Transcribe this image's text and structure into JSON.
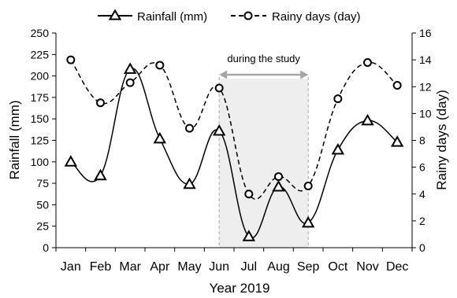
{
  "chart_data": {
    "type": "line",
    "xlabel": "Year 2019",
    "ylabel_left": "Rainfall (mm)",
    "ylabel_right": "Rainy days (day)",
    "categories": [
      "Jan",
      "Feb",
      "Mar",
      "Apr",
      "May",
      "Jun",
      "Jul",
      "Aug",
      "Sep",
      "Oct",
      "Nov",
      "Dec"
    ],
    "y_left": {
      "range": [
        0,
        250
      ],
      "ticks": [
        "0",
        "25",
        "50",
        "75",
        "100",
        "125",
        "150",
        "175",
        "200",
        "225",
        "250"
      ]
    },
    "y_right": {
      "range": [
        0,
        16
      ],
      "ticks": [
        "0",
        "2",
        "4",
        "6",
        "8",
        "10",
        "12",
        "14",
        "16"
      ]
    },
    "series": [
      {
        "name": "Rainfall (mm)",
        "axis": "left",
        "style": "solid",
        "marker": "triangle",
        "values": [
          100,
          84,
          208,
          127,
          74,
          136,
          13,
          71,
          29,
          114,
          148,
          123
        ]
      },
      {
        "name": "Rainy days (day)",
        "axis": "right",
        "style": "dashed",
        "marker": "circle",
        "values": [
          14.0,
          10.8,
          12.3,
          13.6,
          8.9,
          11.9,
          4.0,
          5.3,
          4.6,
          11.1,
          13.8,
          12.1
        ]
      }
    ],
    "annotation": {
      "text": "during the study",
      "from": "Jun",
      "to": "Sep"
    },
    "legend": "top",
    "grid": false,
    "colors": {
      "line": "#000000",
      "shade": "#eeeeee",
      "annotation": "#a6a6a6"
    }
  }
}
